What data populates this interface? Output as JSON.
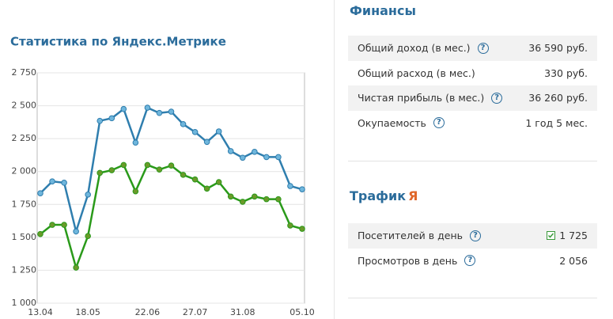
{
  "left": {
    "title": "Статистика по Яндекс.Метрике"
  },
  "chart_data": {
    "type": "line",
    "categories": [
      "13.04",
      null,
      null,
      null,
      "18.05",
      null,
      null,
      null,
      null,
      "22.06",
      null,
      null,
      null,
      "27.07",
      null,
      null,
      null,
      "31.08",
      null,
      null,
      null,
      null,
      "05.10"
    ],
    "series": [
      {
        "color": "#2f7eae",
        "marker": "#6fb6dc",
        "values": [
          1835,
          1925,
          1915,
          1545,
          1825,
          2385,
          2405,
          2475,
          2220,
          2485,
          2445,
          2455,
          2360,
          2300,
          2225,
          2305,
          2155,
          2105,
          2150,
          2110,
          2110,
          1890,
          1865
        ]
      },
      {
        "color": "#2a9a1a",
        "marker": "#6a9a2a",
        "values": [
          1525,
          1595,
          1595,
          1270,
          1510,
          1990,
          2010,
          2050,
          1850,
          2050,
          2015,
          2045,
          1975,
          1940,
          1870,
          1920,
          1810,
          1770,
          1810,
          1790,
          1790,
          1590,
          1565
        ]
      }
    ],
    "ylim": [
      1000,
      2750
    ],
    "yticks": [
      {
        "value": 1000,
        "label": "1 000"
      },
      {
        "value": 1250,
        "label": "1 250"
      },
      {
        "value": 1500,
        "label": "1 500"
      },
      {
        "value": 1750,
        "label": "1 750"
      },
      {
        "value": 2000,
        "label": "2 000"
      },
      {
        "value": 2250,
        "label": "2 250"
      },
      {
        "value": 2500,
        "label": "2 500"
      },
      {
        "value": 2750,
        "label": "2 750"
      }
    ],
    "grid": true
  },
  "help_icon": "?",
  "finance": {
    "title": "Финансы",
    "rows": [
      {
        "label": "Общий доход (в мес.)",
        "value": "36 590 руб.",
        "help": true
      },
      {
        "label": "Общий расход (в мес.)",
        "value": "330 руб.",
        "help": false
      },
      {
        "label": "Чистая прибыль (в мес.)",
        "value": "36 260 руб.",
        "help": true
      },
      {
        "label": "Окупаемость",
        "value": "1 год 5 мес.",
        "help": true
      }
    ]
  },
  "traffic": {
    "title": "Трафик",
    "logo": "Я",
    "rows": [
      {
        "label": "Посетителей в день",
        "value": "1 725",
        "help": true,
        "checked": true
      },
      {
        "label": "Просмотров в день",
        "value": "2 056",
        "help": true,
        "checked": false
      }
    ]
  }
}
